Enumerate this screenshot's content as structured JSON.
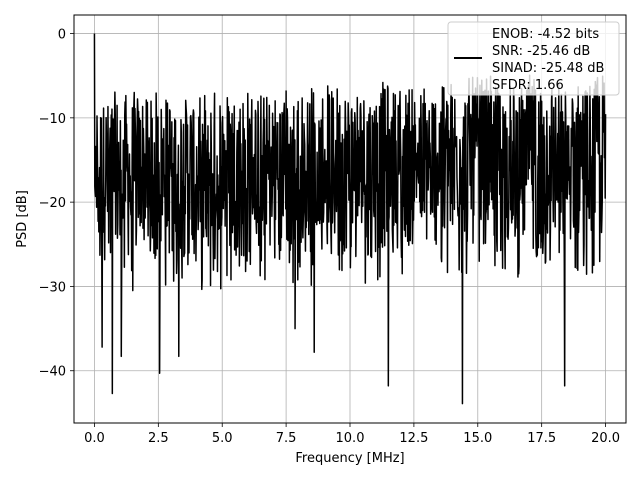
{
  "chart_data": {
    "type": "line",
    "title": "",
    "xlabel": "Frequency [MHz]",
    "ylabel": "PSD [dB]",
    "xlim": [
      -0.8,
      20.8
    ],
    "ylim": [
      -46.2,
      2.2
    ],
    "xticks": [
      0.0,
      2.5,
      5.0,
      7.5,
      10.0,
      12.5,
      15.0,
      17.5,
      20.0
    ],
    "xtick_labels": [
      "0.0",
      "2.5",
      "5.0",
      "7.5",
      "10.0",
      "12.5",
      "15.0",
      "17.5",
      "20.0"
    ],
    "yticks": [
      0,
      -10,
      -20,
      -30,
      -40
    ],
    "ytick_labels": [
      "0",
      "−10",
      "−20",
      "−30",
      "−40"
    ],
    "grid": true,
    "legend_position": "top-right",
    "legend_lines": [
      "ENOB: -4.52 bits",
      "SNR: -25.46 dB",
      "SINAD: -25.48 dB",
      "SFDR: 1.66"
    ],
    "series": [
      {
        "color": "#000000",
        "x_range": [
          0.0,
          20.0
        ],
        "description": "dense noise-like PSD spanning roughly -25 to -5 dB with deep nulls",
        "peaks": [
          {
            "x": 0.0,
            "y": 0.0
          }
        ],
        "nulls": [
          {
            "x": 0.3,
            "y": -37.2
          },
          {
            "x": 0.7,
            "y": -42.7
          },
          {
            "x": 1.05,
            "y": -38.3
          },
          {
            "x": 2.55,
            "y": -40.3
          },
          {
            "x": 3.3,
            "y": -38.3
          },
          {
            "x": 7.85,
            "y": -35.0
          },
          {
            "x": 8.6,
            "y": -37.8
          },
          {
            "x": 11.5,
            "y": -41.8
          },
          {
            "x": 14.4,
            "y": -43.9
          },
          {
            "x": 18.4,
            "y": -41.8
          }
        ]
      }
    ]
  }
}
